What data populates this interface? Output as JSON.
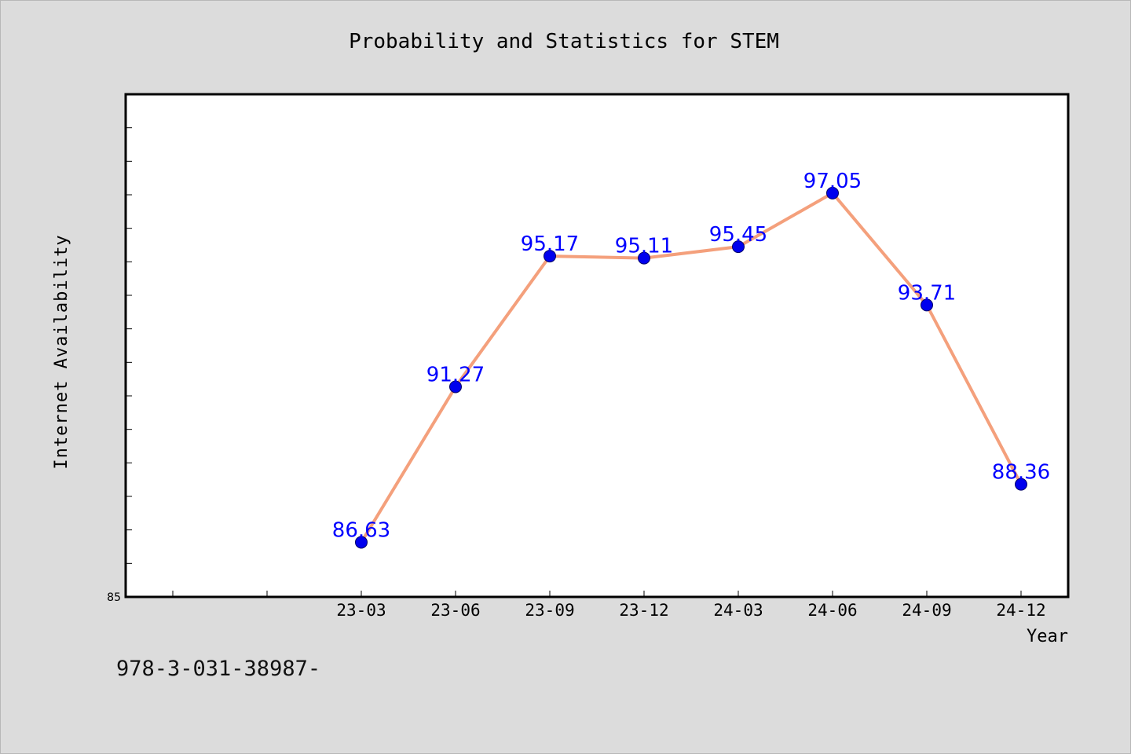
{
  "footer": {
    "text": "978-3-031-38987-"
  },
  "colors": {
    "line": "#f4a07c",
    "marker": "#0000ee",
    "label": "#0000ff",
    "background": "#dcdcdc",
    "plot_bg": "#ffffff"
  },
  "chart_data": {
    "type": "line",
    "title": "Probability and Statistics for STEM",
    "xlabel": "Year",
    "ylabel": "Internet Availability",
    "x_ticks": [
      "",
      "",
      "23-03",
      "23-06",
      "23-09",
      "23-12",
      "24-03",
      "24-06",
      "24-09",
      "24-12"
    ],
    "y_tick_labels": [
      {
        "value": 85,
        "label": "85"
      }
    ],
    "ylim": [
      85,
      100
    ],
    "y_minor_step": 1,
    "grid": false,
    "series": [
      {
        "categories": [
          "23-03",
          "23-06",
          "23-09",
          "23-12",
          "24-03",
          "24-06",
          "24-09",
          "24-12"
        ],
        "values": [
          86.63,
          91.27,
          95.17,
          95.11,
          95.45,
          97.05,
          93.71,
          88.36
        ],
        "labels": [
          "86.63",
          "91.27",
          "95.17",
          "95.11",
          "95.45",
          "97.05",
          "93.71",
          "88.36"
        ]
      }
    ]
  }
}
